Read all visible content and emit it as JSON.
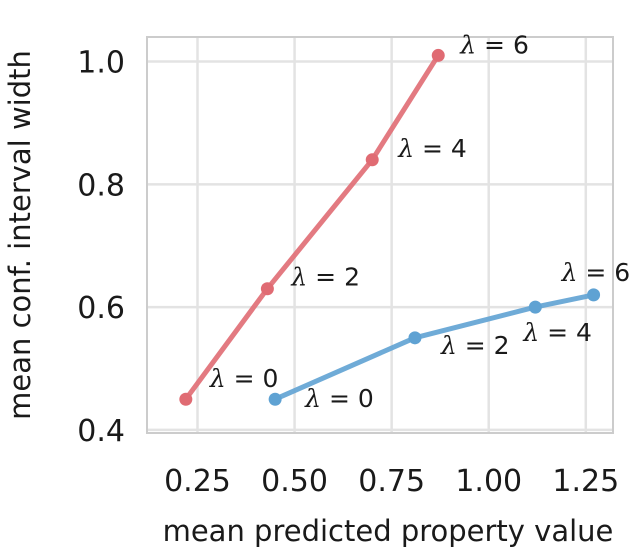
{
  "chart_data": {
    "type": "line",
    "title": "",
    "xlabel": "mean predicted property value",
    "ylabel": "mean conf. interval width",
    "xlim": [
      0.12,
      1.32
    ],
    "ylim": [
      0.395,
      1.04
    ],
    "xticks": [
      0.25,
      0.5,
      0.75,
      1.0,
      1.25
    ],
    "xtick_labels": [
      "0.25",
      "0.50",
      "0.75",
      "1.00",
      "1.25"
    ],
    "yticks": [
      0.4,
      0.6,
      0.8,
      1.0
    ],
    "ytick_labels": [
      "0.4",
      "0.6",
      "0.8",
      "1.0"
    ],
    "grid": true,
    "legend": "none",
    "series": [
      {
        "color": "#e06b73",
        "points": [
          {
            "x": 0.22,
            "y": 0.45,
            "label": "0"
          },
          {
            "x": 0.43,
            "y": 0.63,
            "label": "2"
          },
          {
            "x": 0.7,
            "y": 0.84,
            "label": "4"
          },
          {
            "x": 0.87,
            "y": 1.01,
            "label": "6"
          }
        ]
      },
      {
        "color": "#5fa2d3",
        "points": [
          {
            "x": 0.45,
            "y": 0.45,
            "label": "0"
          },
          {
            "x": 0.81,
            "y": 0.55,
            "label": "2"
          },
          {
            "x": 1.12,
            "y": 0.6,
            "label": "4"
          },
          {
            "x": 1.27,
            "y": 0.62,
            "label": "6"
          }
        ]
      }
    ],
    "point_label_prefix": "λ = "
  }
}
